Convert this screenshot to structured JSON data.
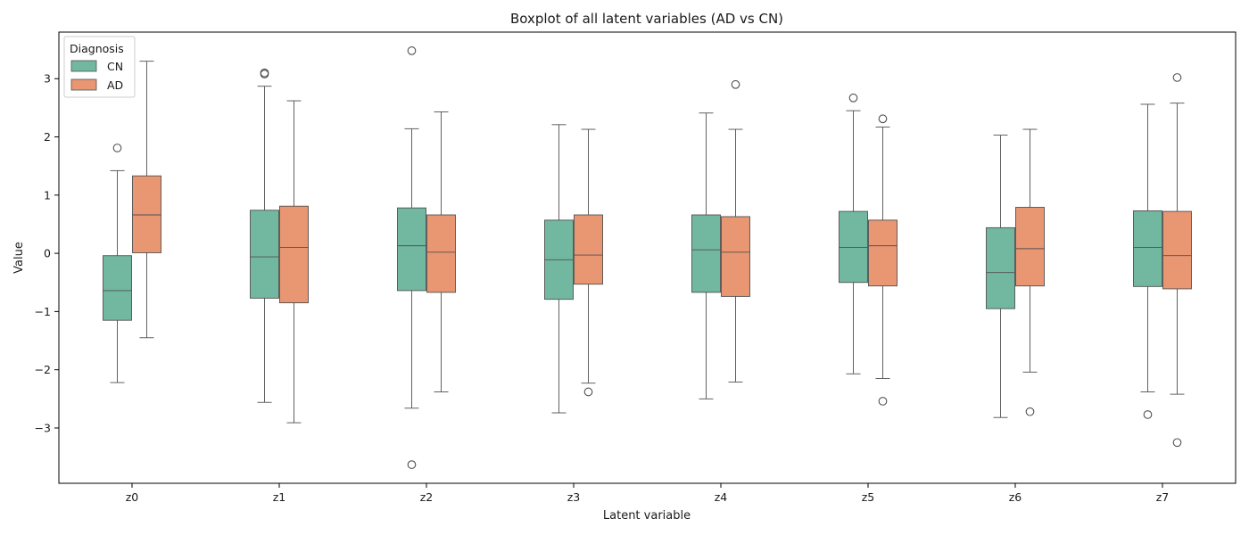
{
  "chart_data": {
    "type": "boxplot",
    "title": "Boxplot of all latent variables (AD vs CN)",
    "xlabel": "Latent variable",
    "ylabel": "Value",
    "ylim": [
      -3.95,
      3.8
    ],
    "yticks": [
      -3,
      -2,
      -1,
      0,
      1,
      2,
      3
    ],
    "ytick_labels": [
      "−3",
      "−2",
      "−1",
      "0",
      "1",
      "2",
      "3"
    ],
    "categories": [
      "z0",
      "z1",
      "z2",
      "z3",
      "z4",
      "z5",
      "z6",
      "z7"
    ],
    "legend": {
      "title": "Diagnosis",
      "position": "top-left"
    },
    "series": [
      {
        "name": "CN",
        "color": "#72b8a0",
        "boxes": [
          {
            "whisker_low": -2.22,
            "q1": -1.15,
            "median": -0.64,
            "q3": -0.04,
            "whisker_high": 1.42,
            "outliers": [
              1.81
            ]
          },
          {
            "whisker_low": -2.56,
            "q1": -0.77,
            "median": -0.06,
            "q3": 0.74,
            "whisker_high": 2.87,
            "outliers": [
              3.08,
              3.1
            ]
          },
          {
            "whisker_low": -2.66,
            "q1": -0.64,
            "median": 0.13,
            "q3": 0.78,
            "whisker_high": 2.14,
            "outliers": [
              3.48,
              -3.63
            ]
          },
          {
            "whisker_low": -2.74,
            "q1": -0.79,
            "median": -0.11,
            "q3": 0.57,
            "whisker_high": 2.21,
            "outliers": []
          },
          {
            "whisker_low": -2.5,
            "q1": -0.67,
            "median": 0.06,
            "q3": 0.66,
            "whisker_high": 2.41,
            "outliers": []
          },
          {
            "whisker_low": -2.07,
            "q1": -0.5,
            "median": 0.1,
            "q3": 0.72,
            "whisker_high": 2.45,
            "outliers": [
              2.67
            ]
          },
          {
            "whisker_low": -2.82,
            "q1": -0.95,
            "median": -0.33,
            "q3": 0.44,
            "whisker_high": 2.03,
            "outliers": []
          },
          {
            "whisker_low": -2.38,
            "q1": -0.57,
            "median": 0.1,
            "q3": 0.73,
            "whisker_high": 2.56,
            "outliers": [
              -2.77
            ]
          }
        ]
      },
      {
        "name": "AD",
        "color": "#e99673",
        "boxes": [
          {
            "whisker_low": -1.45,
            "q1": 0.01,
            "median": 0.66,
            "q3": 1.33,
            "whisker_high": 3.3,
            "outliers": []
          },
          {
            "whisker_low": -2.91,
            "q1": -0.85,
            "median": 0.1,
            "q3": 0.81,
            "whisker_high": 2.62,
            "outliers": []
          },
          {
            "whisker_low": -2.38,
            "q1": -0.67,
            "median": 0.02,
            "q3": 0.66,
            "whisker_high": 2.43,
            "outliers": []
          },
          {
            "whisker_low": -2.23,
            "q1": -0.53,
            "median": -0.03,
            "q3": 0.66,
            "whisker_high": 2.13,
            "outliers": [
              -2.38
            ]
          },
          {
            "whisker_low": -2.21,
            "q1": -0.74,
            "median": 0.02,
            "q3": 0.63,
            "whisker_high": 2.13,
            "outliers": [
              2.9
            ]
          },
          {
            "whisker_low": -2.15,
            "q1": -0.56,
            "median": 0.13,
            "q3": 0.57,
            "whisker_high": 2.17,
            "outliers": [
              2.31,
              -2.54
            ]
          },
          {
            "whisker_low": -2.04,
            "q1": -0.56,
            "median": 0.08,
            "q3": 0.79,
            "whisker_high": 2.13,
            "outliers": [
              -2.72
            ]
          },
          {
            "whisker_low": -2.42,
            "q1": -0.61,
            "median": -0.04,
            "q3": 0.72,
            "whisker_high": 2.58,
            "outliers": [
              3.02,
              -3.25
            ]
          }
        ]
      }
    ]
  }
}
